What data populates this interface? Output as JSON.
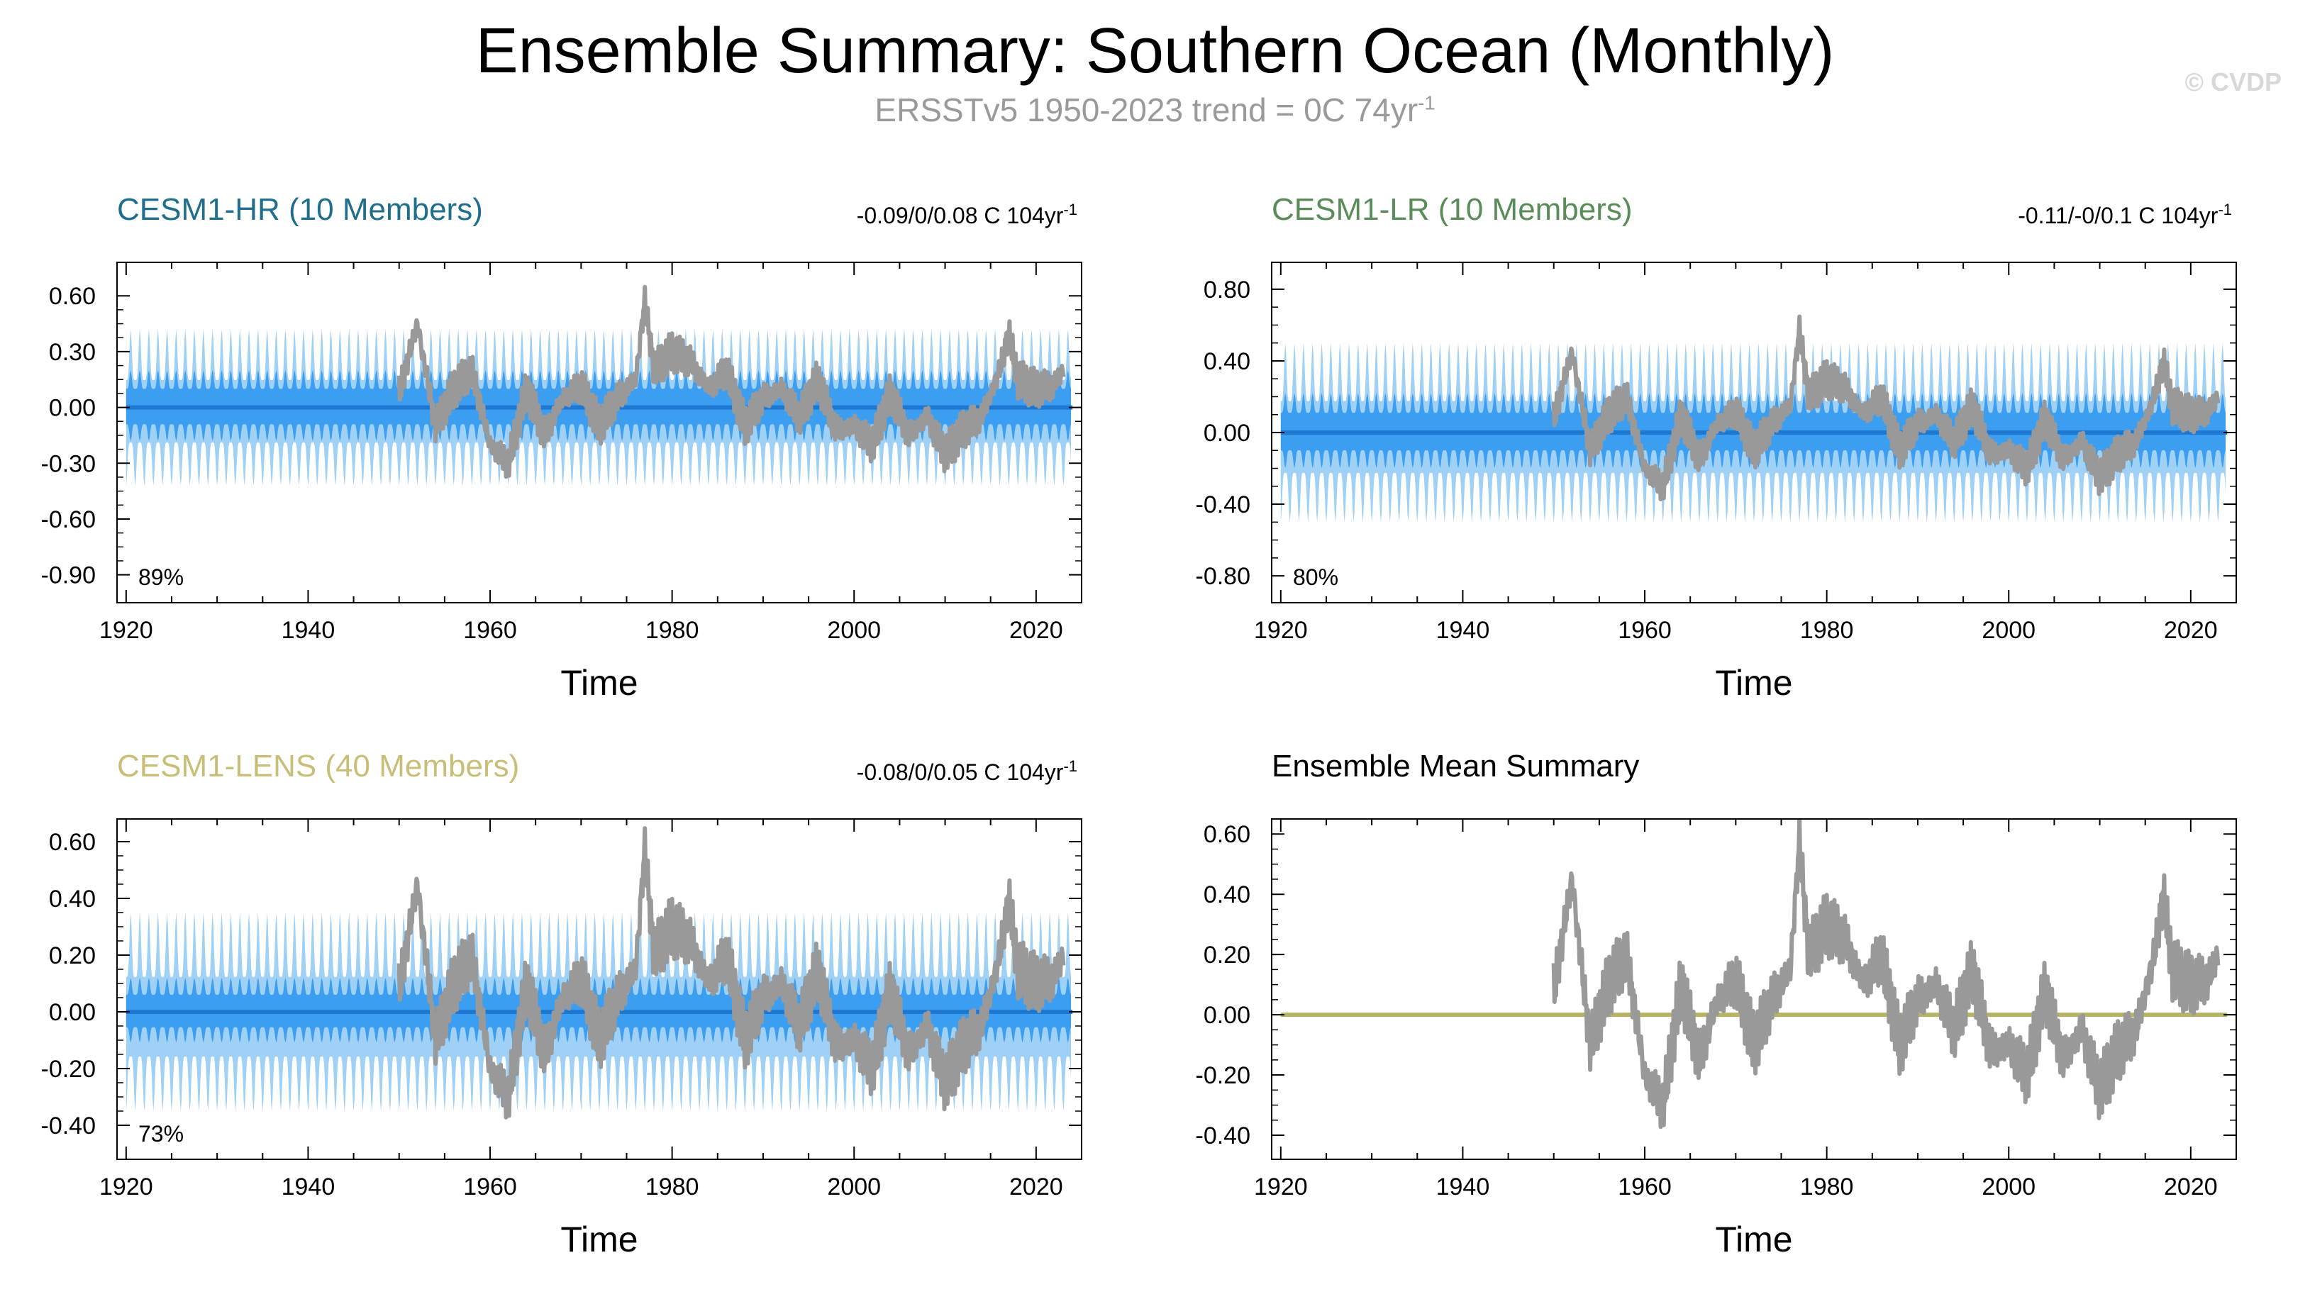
{
  "header": {
    "title": "Ensemble Summary: Southern Ocean (Monthly)",
    "subtitle_main": "ERSSTv5 1950-2023 trend = 0C 74yr",
    "subtitle_exp": "-1",
    "copyright": "© CVDP"
  },
  "colors": {
    "spread_outer": "#9fd0f5",
    "spread_inner": "#3c9ef0",
    "ensemble_mean": "#1e78d2",
    "obs": "#999999",
    "hr_title": "#1e6e8c",
    "lr_title": "#5a8c5a",
    "lens_title": "#c8be78",
    "summary_mean": "#b4b464"
  },
  "chart_data": [
    {
      "type": "area",
      "title": "CESM1-HR (10 Members)",
      "trend_text": "-0.09/0/0.08 C 104yr",
      "trend_exp": "-1",
      "percent_label": "89%",
      "xlabel": "Time",
      "xlim": [
        1919,
        2025
      ],
      "ylim": [
        -1.05,
        0.78
      ],
      "xticks": [
        1920,
        1940,
        1960,
        1980,
        2000,
        2020
      ],
      "yticks": [
        0.6,
        0.3,
        0.0,
        -0.3,
        -0.6,
        -0.9
      ],
      "ytick_labels": [
        "0.60",
        "0.30",
        "0.00",
        "-0.30",
        "-0.60",
        "-0.90"
      ],
      "ensemble_mean_value": 0.0,
      "spread_outer_amplitude": 0.42,
      "spread_inner_amplitude": 0.2,
      "observations": {
        "name": "ERSSTv5",
        "x": [
          1950,
          1952,
          1954,
          1956,
          1958,
          1960,
          1962,
          1964,
          1966,
          1968,
          1970,
          1972,
          1974,
          1976,
          1977,
          1978,
          1980,
          1982,
          1984,
          1986,
          1988,
          1990,
          1992,
          1994,
          1996,
          1998,
          2000,
          2002,
          2004,
          2006,
          2008,
          2010,
          2012,
          2014,
          2016,
          2017,
          2018,
          2020,
          2022,
          2023
        ],
        "y": [
          0.08,
          0.45,
          -0.1,
          0.1,
          0.2,
          -0.2,
          -0.3,
          0.1,
          -0.15,
          0.05,
          0.12,
          -0.1,
          0.05,
          0.15,
          0.58,
          0.2,
          0.3,
          0.25,
          0.1,
          0.2,
          -0.1,
          0.05,
          0.1,
          -0.05,
          0.15,
          -0.12,
          -0.1,
          -0.2,
          0.08,
          -0.15,
          -0.05,
          -0.25,
          -0.12,
          -0.05,
          0.2,
          0.4,
          0.15,
          0.1,
          0.12,
          0.2
        ]
      }
    },
    {
      "type": "area",
      "title": "CESM1-LR (10 Members)",
      "trend_text": "-0.11/-0/0.1 C 104yr",
      "trend_exp": "-1",
      "percent_label": "80%",
      "xlabel": "Time",
      "xlim": [
        1919,
        2025
      ],
      "ylim": [
        -0.95,
        0.95
      ],
      "xticks": [
        1920,
        1940,
        1960,
        1980,
        2000,
        2020
      ],
      "yticks": [
        0.8,
        0.4,
        0.0,
        -0.4,
        -0.8
      ],
      "ytick_labels": [
        "0.80",
        "0.40",
        "0.00",
        "-0.40",
        "-0.80"
      ],
      "ensemble_mean_value": 0.0,
      "spread_outer_amplitude": 0.5,
      "spread_inner_amplitude": 0.22,
      "observations": {
        "name": "ERSSTv5",
        "x": [
          1950,
          1952,
          1954,
          1956,
          1958,
          1960,
          1962,
          1964,
          1966,
          1968,
          1970,
          1972,
          1974,
          1976,
          1977,
          1978,
          1980,
          1982,
          1984,
          1986,
          1988,
          1990,
          1992,
          1994,
          1996,
          1998,
          2000,
          2002,
          2004,
          2006,
          2008,
          2010,
          2012,
          2014,
          2016,
          2017,
          2018,
          2020,
          2022,
          2023
        ],
        "y": [
          0.08,
          0.45,
          -0.1,
          0.1,
          0.2,
          -0.2,
          -0.3,
          0.1,
          -0.15,
          0.05,
          0.12,
          -0.1,
          0.05,
          0.15,
          0.58,
          0.2,
          0.3,
          0.25,
          0.1,
          0.2,
          -0.1,
          0.05,
          0.1,
          -0.05,
          0.15,
          -0.12,
          -0.1,
          -0.2,
          0.08,
          -0.15,
          -0.05,
          -0.25,
          -0.12,
          -0.05,
          0.2,
          0.4,
          0.15,
          0.1,
          0.12,
          0.2
        ]
      }
    },
    {
      "type": "area",
      "title": "CESM1-LENS (40 Members)",
      "trend_text": "-0.08/0/0.05 C 104yr",
      "trend_exp": "-1",
      "percent_label": "73%",
      "xlabel": "Time",
      "xlim": [
        1919,
        2025
      ],
      "ylim": [
        -0.52,
        0.68
      ],
      "xticks": [
        1920,
        1940,
        1960,
        1980,
        2000,
        2020
      ],
      "yticks": [
        0.6,
        0.4,
        0.2,
        0.0,
        -0.2,
        -0.4
      ],
      "ytick_labels": [
        "0.60",
        "0.40",
        "0.20",
        "0.00",
        "-0.20",
        "-0.40"
      ],
      "ensemble_mean_value": 0.0,
      "spread_outer_amplitude": 0.35,
      "spread_inner_amplitude": 0.12,
      "observations": {
        "name": "ERSSTv5",
        "x": [
          1950,
          1952,
          1954,
          1956,
          1958,
          1960,
          1962,
          1964,
          1966,
          1968,
          1970,
          1972,
          1974,
          1976,
          1977,
          1978,
          1980,
          1982,
          1984,
          1986,
          1988,
          1990,
          1992,
          1994,
          1996,
          1998,
          2000,
          2002,
          2004,
          2006,
          2008,
          2010,
          2012,
          2014,
          2016,
          2017,
          2018,
          2020,
          2022,
          2023
        ],
        "y": [
          0.08,
          0.45,
          -0.1,
          0.1,
          0.2,
          -0.2,
          -0.3,
          0.1,
          -0.15,
          0.05,
          0.12,
          -0.1,
          0.05,
          0.15,
          0.58,
          0.2,
          0.3,
          0.25,
          0.1,
          0.2,
          -0.1,
          0.05,
          0.1,
          -0.05,
          0.15,
          -0.12,
          -0.1,
          -0.2,
          0.08,
          -0.15,
          -0.05,
          -0.25,
          -0.12,
          -0.05,
          0.2,
          0.4,
          0.15,
          0.1,
          0.12,
          0.2
        ]
      }
    },
    {
      "type": "line",
      "title": "Ensemble Mean Summary",
      "xlabel": "Time",
      "xlim": [
        1919,
        2025
      ],
      "ylim": [
        -0.48,
        0.65
      ],
      "xticks": [
        1920,
        1940,
        1960,
        1980,
        2000,
        2020
      ],
      "yticks": [
        0.6,
        0.4,
        0.2,
        0.0,
        -0.2,
        -0.4
      ],
      "ytick_labels": [
        "0.60",
        "0.40",
        "0.20",
        "0.00",
        "-0.20",
        "-0.40"
      ],
      "ensemble_mean_value": 0.0,
      "observations": {
        "name": "ERSSTv5",
        "x": [
          1950,
          1952,
          1954,
          1956,
          1958,
          1960,
          1962,
          1964,
          1966,
          1968,
          1970,
          1972,
          1974,
          1976,
          1977,
          1978,
          1980,
          1982,
          1984,
          1986,
          1988,
          1990,
          1992,
          1994,
          1996,
          1998,
          2000,
          2002,
          2004,
          2006,
          2008,
          2010,
          2012,
          2014,
          2016,
          2017,
          2018,
          2020,
          2022,
          2023
        ],
        "y": [
          0.08,
          0.45,
          -0.1,
          0.1,
          0.2,
          -0.2,
          -0.3,
          0.1,
          -0.15,
          0.05,
          0.12,
          -0.1,
          0.05,
          0.15,
          0.58,
          0.2,
          0.3,
          0.25,
          0.1,
          0.2,
          -0.1,
          0.05,
          0.1,
          -0.05,
          0.15,
          -0.12,
          -0.1,
          -0.2,
          0.08,
          -0.15,
          -0.05,
          -0.25,
          -0.12,
          -0.05,
          0.2,
          0.4,
          0.15,
          0.1,
          0.12,
          0.2
        ]
      }
    }
  ]
}
